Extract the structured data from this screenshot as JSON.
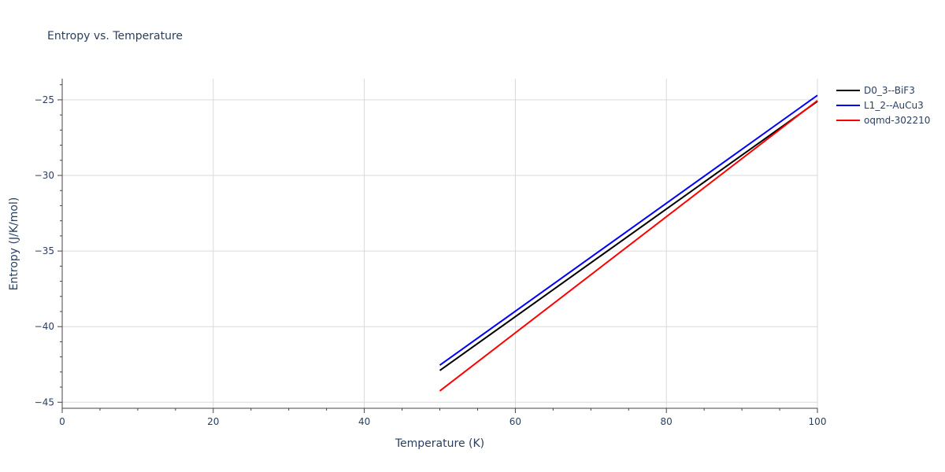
{
  "chart_data": {
    "type": "line",
    "title": "Entropy vs. Temperature",
    "xlabel": "Temperature (K)",
    "ylabel": "Entropy (J/K/mol)",
    "xlim": [
      0,
      100
    ],
    "ylim": [
      -45.4,
      -23.6
    ],
    "x_ticks": [
      0,
      20,
      40,
      60,
      80,
      100
    ],
    "x_tick_labels": [
      "0",
      "20",
      "40",
      "60",
      "80",
      "100"
    ],
    "y_ticks": [
      -45,
      -40,
      -35,
      -30,
      -25
    ],
    "y_tick_labels": [
      "−45",
      "−40",
      "−35",
      "−30",
      "−25"
    ],
    "grid": true,
    "legend_position": "top-right outside",
    "series": [
      {
        "name": "D0_3--BiF3",
        "color": "#000000",
        "x": [
          50,
          100
        ],
        "y": [
          -42.9,
          -25.1
        ]
      },
      {
        "name": "L1_2--AuCu3",
        "color": "#0000ff",
        "x": [
          50,
          100
        ],
        "y": [
          -42.55,
          -24.7
        ]
      },
      {
        "name": "oqmd-302210",
        "color": "#ff0000",
        "x": [
          50,
          100
        ],
        "y": [
          -44.25,
          -25.05
        ]
      }
    ]
  }
}
